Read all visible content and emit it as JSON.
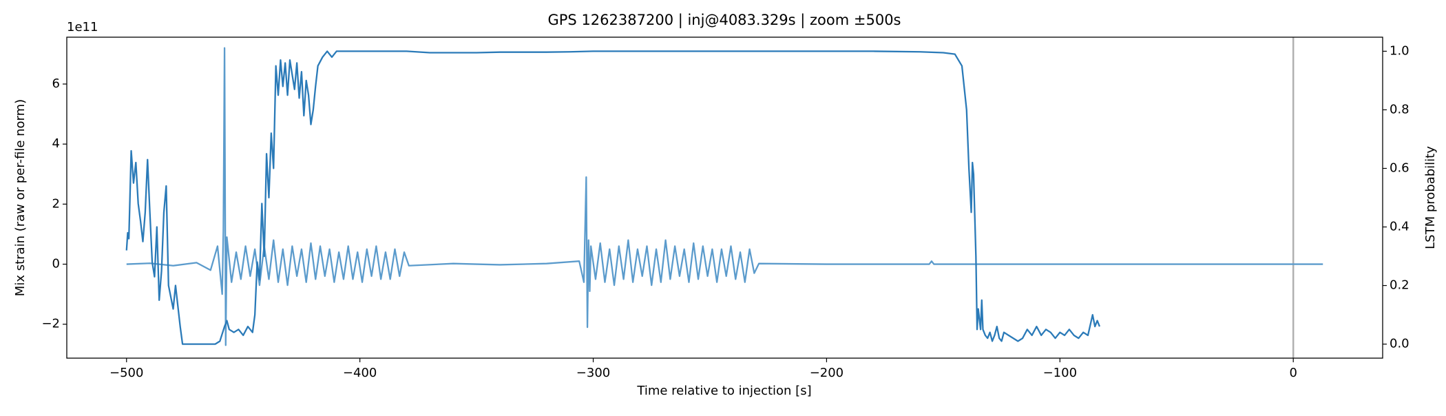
{
  "chart_data": {
    "type": "line",
    "title": "GPS 1262387200 | inj@4083.329s | zoom ±500s",
    "x_label": "Time relative to injection [s]",
    "y_label": "Mix strain (raw or per-file norm)",
    "y2_label": "LSTM probability",
    "y_offset_label": "1e11",
    "xlim": [
      -525.6,
      38.3
    ],
    "ylim": [
      -3.13,
      7.56
    ],
    "y2lim": [
      -0.048,
      1.048
    ],
    "xticks": [
      {
        "value": -500,
        "label": "−500"
      },
      {
        "value": -400,
        "label": "−400"
      },
      {
        "value": -300,
        "label": "−300"
      },
      {
        "value": -200,
        "label": "−200"
      },
      {
        "value": -100,
        "label": "−100"
      },
      0
    ],
    "yticks": [
      {
        "value": -2,
        "label": "−2"
      },
      0,
      2,
      4,
      6
    ],
    "y2ticks": [
      {
        "value": 0,
        "label": "0.0"
      },
      0.2,
      0.4,
      0.6,
      0.8,
      {
        "value": 1,
        "label": "1.0"
      }
    ],
    "vline_x": 0,
    "vline_color": "#b0b0b0",
    "grid": false,
    "series": [
      {
        "color": "#5b9bcc",
        "axis": "y",
        "x": [
          -500,
          -490,
          -480,
          -470,
          -464,
          -461,
          -459,
          -458.5,
          -458,
          -457.5,
          -457,
          -455,
          -453,
          -451,
          -449,
          -447,
          -445,
          -443,
          -441,
          -439,
          -437,
          -435,
          -433,
          -431,
          -429,
          -427,
          -425,
          -423,
          -421,
          -419,
          -417,
          -415,
          -413,
          -411,
          -409,
          -407,
          -405,
          -403,
          -401,
          -399,
          -397,
          -395,
          -393,
          -391,
          -389,
          -387,
          -385,
          -383,
          -381,
          -379,
          -360,
          -340,
          -320,
          -306,
          -304,
          -303,
          -302.5,
          -302,
          -301.5,
          -301,
          -299,
          -297,
          -295,
          -293,
          -291,
          -289,
          -287,
          -285,
          -283,
          -281,
          -279,
          -277,
          -275,
          -273,
          -271,
          -269,
          -267,
          -265,
          -263,
          -261,
          -259,
          -257,
          -255,
          -253,
          -251,
          -249,
          -247,
          -245,
          -243,
          -241,
          -239,
          -237,
          -235,
          -233,
          -231,
          -229,
          -200,
          -156,
          -155,
          -154,
          -100,
          -50,
          0,
          12.7
        ],
        "values": [
          0,
          0.03,
          -0.05,
          0.05,
          -0.2,
          0.6,
          -1.0,
          1.1,
          7.2,
          -2.7,
          0.9,
          -0.6,
          0.4,
          -0.5,
          0.6,
          -0.4,
          0.5,
          -0.7,
          0.6,
          -0.5,
          0.8,
          -0.6,
          0.5,
          -0.7,
          0.6,
          -0.4,
          0.5,
          -0.6,
          0.7,
          -0.5,
          0.6,
          -0.4,
          0.5,
          -0.6,
          0.4,
          -0.5,
          0.6,
          -0.5,
          0.4,
          -0.6,
          0.5,
          -0.4,
          0.6,
          -0.5,
          0.4,
          -0.5,
          0.5,
          -0.4,
          0.4,
          -0.05,
          0.02,
          -0.02,
          0.02,
          0.1,
          -0.6,
          2.9,
          -2.1,
          0.8,
          -0.9,
          0.6,
          -0.5,
          0.7,
          -0.6,
          0.5,
          -0.7,
          0.6,
          -0.5,
          0.8,
          -0.6,
          0.5,
          -0.4,
          0.6,
          -0.7,
          0.5,
          -0.6,
          0.8,
          -0.5,
          0.6,
          -0.4,
          0.5,
          -0.6,
          0.7,
          -0.5,
          0.6,
          -0.4,
          0.5,
          -0.6,
          0.5,
          -0.4,
          0.6,
          -0.5,
          0.4,
          -0.6,
          0.5,
          -0.3,
          0.02,
          0,
          0,
          0.1,
          0,
          0,
          0,
          0,
          0
        ]
      },
      {
        "color": "#2a7ab8",
        "axis": "y2",
        "x": [
          -500,
          -499.5,
          -499,
          -498,
          -497,
          -496,
          -495,
          -494,
          -493,
          -492,
          -491,
          -490,
          -489,
          -488,
          -487,
          -486,
          -485,
          -484,
          -483,
          -482,
          -481,
          -480,
          -479,
          -478,
          -477,
          -476,
          -470,
          -462,
          -460,
          -458,
          -457,
          -456,
          -454,
          -452,
          -450,
          -448,
          -446,
          -445,
          -444,
          -443,
          -442,
          -441,
          -440,
          -439,
          -438,
          -437,
          -436,
          -435,
          -434,
          -433,
          -432,
          -431,
          -430,
          -429,
          -428,
          -427,
          -426,
          -425,
          -424,
          -423,
          -422,
          -421,
          -420,
          -419,
          -418,
          -416,
          -414,
          -412,
          -410,
          -405,
          -400,
          -390,
          -380,
          -370,
          -350,
          -340,
          -320,
          -310,
          -300,
          -280,
          -250,
          -200,
          -180,
          -160,
          -150,
          -145,
          -142,
          -140,
          -139,
          -138,
          -137.5,
          -137,
          -136,
          -135.5,
          -135,
          -134,
          -133.5,
          -133,
          -132,
          -131,
          -130,
          -129,
          -128,
          -127,
          -126,
          -125,
          -124,
          -122,
          -120,
          -118,
          -116,
          -114,
          -112,
          -110,
          -108,
          -106,
          -104,
          -102,
          -100,
          -98,
          -96,
          -94,
          -92,
          -90,
          -88,
          -86,
          -85,
          -84,
          -83
        ],
        "values": [
          0.32,
          0.38,
          0.36,
          0.66,
          0.55,
          0.62,
          0.48,
          0.42,
          0.35,
          0.45,
          0.63,
          0.45,
          0.28,
          0.23,
          0.4,
          0.15,
          0.25,
          0.45,
          0.54,
          0.2,
          0.16,
          0.12,
          0.2,
          0.13,
          0.06,
          0.0,
          0.0,
          0.0,
          0.01,
          0.06,
          0.08,
          0.05,
          0.04,
          0.05,
          0.03,
          0.06,
          0.04,
          0.1,
          0.28,
          0.22,
          0.48,
          0.3,
          0.65,
          0.5,
          0.72,
          0.6,
          0.95,
          0.85,
          0.97,
          0.88,
          0.96,
          0.85,
          0.97,
          0.92,
          0.87,
          0.96,
          0.84,
          0.93,
          0.78,
          0.9,
          0.85,
          0.75,
          0.8,
          0.88,
          0.95,
          0.98,
          1.0,
          0.98,
          1.0,
          1.0,
          1.0,
          1.0,
          1.0,
          0.995,
          0.995,
          0.997,
          0.997,
          0.998,
          1.0,
          1.0,
          1.0,
          1.0,
          1.0,
          0.998,
          0.995,
          0.99,
          0.95,
          0.8,
          0.6,
          0.45,
          0.62,
          0.58,
          0.3,
          0.05,
          0.12,
          0.05,
          0.15,
          0.05,
          0.03,
          0.02,
          0.04,
          0.01,
          0.03,
          0.06,
          0.02,
          0.01,
          0.04,
          0.03,
          0.02,
          0.01,
          0.02,
          0.05,
          0.03,
          0.06,
          0.03,
          0.05,
          0.04,
          0.02,
          0.04,
          0.03,
          0.05,
          0.03,
          0.02,
          0.04,
          0.03,
          0.1,
          0.06,
          0.08,
          0.06
        ]
      }
    ]
  }
}
